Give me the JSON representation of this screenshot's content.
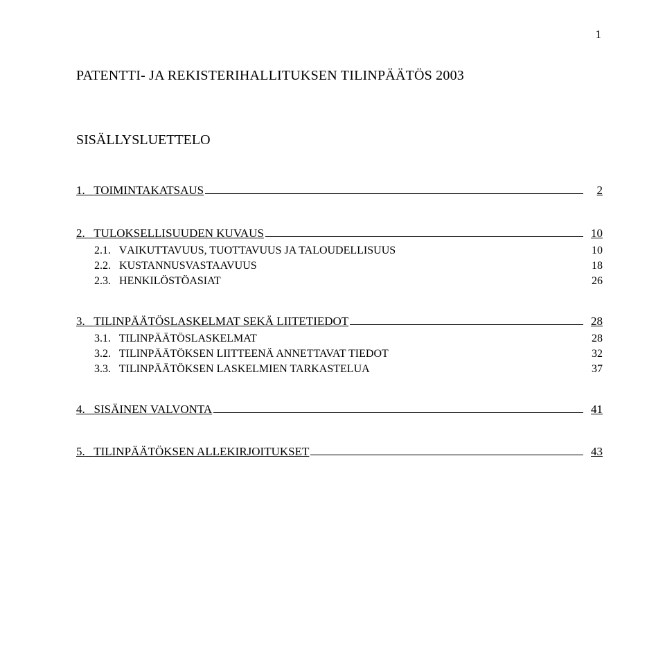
{
  "page_number_top": "1",
  "title": "PATENTTI- JA REKISTERIHALLITUKSEN TILINPÄÄTÖS 2003",
  "subtitle": "SISÄLLYSLUETTELO",
  "toc": {
    "s1": {
      "num": "1.",
      "label": "TOIMINTAKATSAUS",
      "page": "2"
    },
    "s2": {
      "num": "2.",
      "label": "TULOKSELLISUUDEN KUVAUS",
      "page": "10",
      "sub": {
        "a": {
          "num": "2.1.",
          "word1": "V",
          "rest": "AIKUTTAVUUS, TUOTTAVUUS JA TALOUDELLISUUS",
          "page": "10"
        },
        "b": {
          "num": "2.2.",
          "word1": "K",
          "rest": "USTANNUSVASTAAVUUS",
          "page": "18"
        },
        "c": {
          "num": "2.3.",
          "word1": "H",
          "rest": "ENKILÖSTÖASIAT",
          "page": "26"
        }
      }
    },
    "s3": {
      "num": "3.",
      "label": "TILINPÄÄTÖSLASKELMAT SEKÄ LIITETIEDOT",
      "page": "28",
      "sub": {
        "a": {
          "num": "3.1.",
          "word1": "T",
          "rest": "ILINPÄÄTÖSLASKELMAT",
          "page": "28"
        },
        "b": {
          "num": "3.2.",
          "word1": "T",
          "rest": "ILINPÄÄTÖKSEN LIITTEENÄ ANNETTAVAT TIEDOT",
          "page": "32"
        },
        "c": {
          "num": "3.3.",
          "word1": "T",
          "rest": "ILINPÄÄTÖKSEN LASKELMIEN TARKASTELUA",
          "page": "37"
        }
      }
    },
    "s4": {
      "num": "4.",
      "label": "SISÄINEN VALVONTA",
      "page": "41"
    },
    "s5": {
      "num": "5.",
      "label": "TILINPÄÄTÖKSEN ALLEKIRJOITUKSET",
      "page": "43"
    }
  },
  "colors": {
    "background": "#ffffff",
    "text": "#000000"
  },
  "fonts": {
    "family": "Times New Roman",
    "title_size_pt": 15,
    "body_size_pt": 13
  }
}
